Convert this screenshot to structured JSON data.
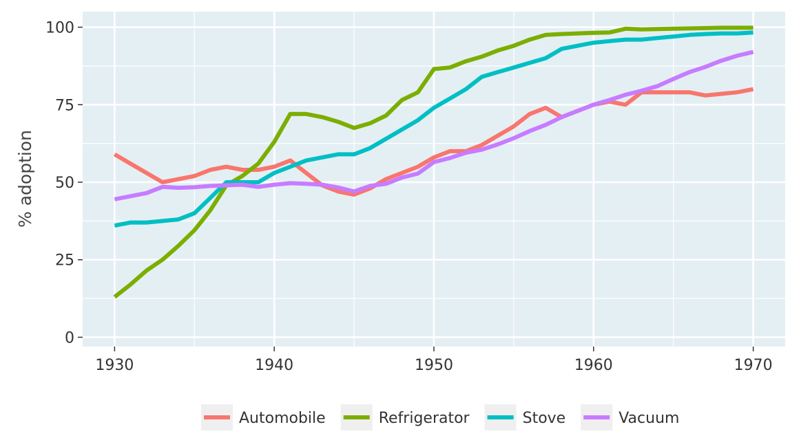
{
  "chart_data": {
    "type": "line",
    "title": "",
    "xlabel": "",
    "ylabel": "% adoption",
    "xlim": [
      1928,
      1972
    ],
    "ylim": [
      -3,
      105
    ],
    "x_ticks": [
      1930,
      1940,
      1950,
      1960,
      1970
    ],
    "y_ticks": [
      0,
      25,
      50,
      75,
      100
    ],
    "grid": true,
    "legend_position": "bottom",
    "x": [
      1930,
      1931,
      1932,
      1933,
      1934,
      1935,
      1936,
      1937,
      1938,
      1939,
      1940,
      1941,
      1942,
      1943,
      1944,
      1945,
      1946,
      1947,
      1948,
      1949,
      1950,
      1951,
      1952,
      1953,
      1954,
      1955,
      1956,
      1957,
      1958,
      1959,
      1960,
      1961,
      1962,
      1963,
      1964,
      1965,
      1966,
      1967,
      1968,
      1969,
      1970
    ],
    "series": [
      {
        "name": "Automobile",
        "color": "#F8766D",
        "values": [
          59,
          56,
          53,
          50,
          51,
          52,
          54,
          55,
          54,
          54,
          55,
          57,
          53,
          49,
          47,
          46,
          48,
          51,
          53,
          55,
          58,
          60,
          60,
          62,
          65,
          68,
          72,
          74,
          71,
          73,
          75,
          76,
          75,
          79,
          79,
          79,
          79,
          78,
          78.5,
          79,
          80
        ]
      },
      {
        "name": "Refrigerator",
        "color": "#7CAE00",
        "values": [
          13,
          17,
          21.5,
          25,
          29.5,
          34.5,
          41,
          49,
          52,
          56,
          63,
          72,
          72,
          71,
          69.5,
          67.5,
          69,
          71.5,
          76.5,
          79,
          86.5,
          87,
          89,
          90.5,
          92.5,
          94,
          96,
          97.5,
          97.8,
          98,
          98.2,
          98.3,
          99.5,
          99.3,
          99.4,
          99.5,
          99.6,
          99.7,
          99.8,
          99.8,
          99.8
        ]
      },
      {
        "name": "Stove",
        "color": "#00BFC4",
        "values": [
          36,
          37,
          37,
          37.5,
          38,
          40,
          45,
          50,
          50,
          50,
          53,
          55,
          57,
          58,
          59,
          59,
          61,
          64,
          67,
          70,
          74,
          77,
          80,
          84,
          85.5,
          87,
          88.5,
          90,
          93,
          94,
          95,
          95.5,
          96,
          96,
          96.5,
          97,
          97.5,
          97.8,
          98,
          98,
          98.3
        ]
      },
      {
        "name": "Vacuum",
        "color": "#C77CFF",
        "values": [
          44.5,
          45.5,
          46.5,
          48.5,
          48.2,
          48.4,
          48.8,
          49,
          49.2,
          48.5,
          49.2,
          49.7,
          49.5,
          49.2,
          48.3,
          47,
          48.8,
          49.5,
          51.5,
          52.8,
          56.5,
          57.8,
          59.5,
          60.5,
          62.2,
          64.2,
          66.5,
          68.5,
          71,
          73,
          75,
          76.5,
          78.2,
          79.5,
          81,
          83.3,
          85.5,
          87.2,
          89.2,
          90.8,
          92
        ]
      }
    ]
  }
}
